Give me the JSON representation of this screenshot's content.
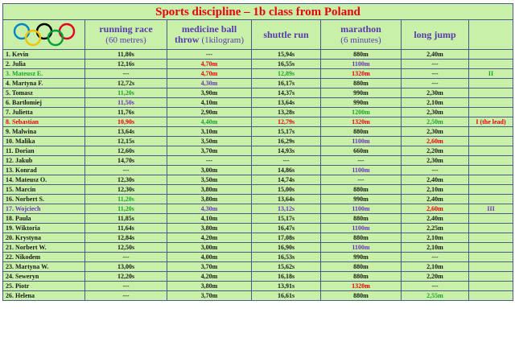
{
  "title": "Sports discipline – 1b class from Poland",
  "logo_icon": "olympic-rings-icon",
  "headers": {
    "running_race": {
      "title": "running race",
      "sub": "(60 metres)"
    },
    "medicine_ball": {
      "title": "medicine ball throw",
      "sub": "(1kilogram)"
    },
    "shuttle_run": {
      "title": "shuttle run",
      "sub": ""
    },
    "marathon": {
      "title": "marathon",
      "sub": "(6 minutes)"
    },
    "long_jump": {
      "title": "long jump",
      "sub": ""
    }
  },
  "colors": {
    "title": "#e8000d",
    "header": "#5a3ab0",
    "background": "#c8f0a8",
    "red": "#e8000d",
    "green": "#19a52a",
    "purple": "#6a32b8",
    "black": "#1a1a1a"
  },
  "rows": [
    {
      "name": "1.  Kevin",
      "name_color": "black",
      "run": "11,80s",
      "run_c": "black",
      "ball": "---",
      "ball_c": "black",
      "shuttle": "15,94s",
      "shuttle_c": "black",
      "marathon": "880m",
      "marathon_c": "black",
      "jump": "2,40m",
      "jump_c": "black",
      "note": "",
      "note_c": "black"
    },
    {
      "name": "2.  Julia",
      "name_color": "black",
      "run": "12,16s",
      "run_c": "black",
      "ball": "4,70m",
      "ball_c": "red",
      "shuttle": "16,55s",
      "shuttle_c": "black",
      "marathon": "1100m",
      "marathon_c": "purple",
      "jump": "---",
      "jump_c": "black",
      "note": "",
      "note_c": "black"
    },
    {
      "name": "3.  Mateusz E.",
      "name_color": "green",
      "run": "---",
      "run_c": "black",
      "ball": "4,70m",
      "ball_c": "red",
      "shuttle": "12,89s",
      "shuttle_c": "green",
      "marathon": "1320m",
      "marathon_c": "red",
      "jump": "---",
      "jump_c": "black",
      "note": "II",
      "note_c": "green"
    },
    {
      "name": "4.  Martyna F.",
      "name_color": "black",
      "run": "12,72s",
      "run_c": "black",
      "ball": "4,30m",
      "ball_c": "purple",
      "shuttle": "16,17s",
      "shuttle_c": "black",
      "marathon": "880m",
      "marathon_c": "black",
      "jump": "---",
      "jump_c": "black",
      "note": "",
      "note_c": "black"
    },
    {
      "name": "5.  Tomasz",
      "name_color": "black",
      "run": "11,20s",
      "run_c": "green",
      "ball": "3,90m",
      "ball_c": "black",
      "shuttle": "14,37s",
      "shuttle_c": "black",
      "marathon": "990m",
      "marathon_c": "black",
      "jump": "2,30m",
      "jump_c": "black",
      "note": "",
      "note_c": "black"
    },
    {
      "name": "6.  Bartłomiej",
      "name_color": "black",
      "run": "11,50s",
      "run_c": "purple",
      "ball": "4,10m",
      "ball_c": "black",
      "shuttle": "13,64s",
      "shuttle_c": "black",
      "marathon": "990m",
      "marathon_c": "black",
      "jump": "2,10m",
      "jump_c": "black",
      "note": "",
      "note_c": "black"
    },
    {
      "name": "7.  Julietta",
      "name_color": "black",
      "run": "11,76s",
      "run_c": "black",
      "ball": "2,90m",
      "ball_c": "black",
      "shuttle": "13,28s",
      "shuttle_c": "black",
      "marathon": "1200m",
      "marathon_c": "green",
      "jump": "2,30m",
      "jump_c": "black",
      "note": "",
      "note_c": "black"
    },
    {
      "name": "8.  Sebastian",
      "name_color": "red",
      "run": "10,90s",
      "run_c": "red",
      "ball": "4,40m",
      "ball_c": "green",
      "shuttle": "12,79s",
      "shuttle_c": "red",
      "marathon": "1320m",
      "marathon_c": "red",
      "jump": "2,50m",
      "jump_c": "green",
      "note": "I (the lead)",
      "note_c": "red"
    },
    {
      "name": "9.  Malwina",
      "name_color": "black",
      "run": "13,64s",
      "run_c": "black",
      "ball": "3,10m",
      "ball_c": "black",
      "shuttle": "15,17s",
      "shuttle_c": "black",
      "marathon": "880m",
      "marathon_c": "black",
      "jump": "2,30m",
      "jump_c": "black",
      "note": "",
      "note_c": "black"
    },
    {
      "name": "10. Malika",
      "name_color": "black",
      "run": "12,15s",
      "run_c": "black",
      "ball": "3,50m",
      "ball_c": "black",
      "shuttle": "16,29s",
      "shuttle_c": "black",
      "marathon": "1100m",
      "marathon_c": "purple",
      "jump": "2,60m",
      "jump_c": "red",
      "note": "",
      "note_c": "black"
    },
    {
      "name": "11. Dorian",
      "name_color": "black",
      "run": "12,60s",
      "run_c": "black",
      "ball": "3,70m",
      "ball_c": "black",
      "shuttle": "14,93s",
      "shuttle_c": "black",
      "marathon": "660m",
      "marathon_c": "black",
      "jump": "2,20m",
      "jump_c": "black",
      "note": "",
      "note_c": "black"
    },
    {
      "name": "12. Jakub",
      "name_color": "black",
      "run": "14,70s",
      "run_c": "black",
      "ball": "---",
      "ball_c": "black",
      "shuttle": "---",
      "shuttle_c": "black",
      "marathon": "---",
      "marathon_c": "black",
      "jump": "2,30m",
      "jump_c": "black",
      "note": "",
      "note_c": "black"
    },
    {
      "name": "13. Konrad",
      "name_color": "black",
      "run": "---",
      "run_c": "black",
      "ball": "3,00m",
      "ball_c": "black",
      "shuttle": "14,86s",
      "shuttle_c": "black",
      "marathon": "1100m",
      "marathon_c": "purple",
      "jump": "---",
      "jump_c": "black",
      "note": "",
      "note_c": "black"
    },
    {
      "name": "14. Mateusz O.",
      "name_color": "black",
      "run": "12,30s",
      "run_c": "black",
      "ball": "3,50m",
      "ball_c": "black",
      "shuttle": "14,74s",
      "shuttle_c": "black",
      "marathon": "---",
      "marathon_c": "black",
      "jump": "2,40m",
      "jump_c": "black",
      "note": "",
      "note_c": "black"
    },
    {
      "name": "15. Marcin",
      "name_color": "black",
      "run": "12,30s",
      "run_c": "black",
      "ball": "3,80m",
      "ball_c": "black",
      "shuttle": "15,00s",
      "shuttle_c": "black",
      "marathon": "880m",
      "marathon_c": "black",
      "jump": "2,10m",
      "jump_c": "black",
      "note": "",
      "note_c": "black"
    },
    {
      "name": "16. Norbert S.",
      "name_color": "black",
      "run": "11,20s",
      "run_c": "green",
      "ball": "3,80m",
      "ball_c": "black",
      "shuttle": "13,64s",
      "shuttle_c": "black",
      "marathon": "990m",
      "marathon_c": "black",
      "jump": "2,40m",
      "jump_c": "black",
      "note": "",
      "note_c": "black"
    },
    {
      "name": "17. Wojciech",
      "name_color": "purple",
      "run": "11,20s",
      "run_c": "green",
      "ball": "4,30m",
      "ball_c": "purple",
      "shuttle": "13,12s",
      "shuttle_c": "purple",
      "marathon": "1100m",
      "marathon_c": "purple",
      "jump": "2,60m",
      "jump_c": "red",
      "note": "III",
      "note_c": "purple"
    },
    {
      "name": "18. Paula",
      "name_color": "black",
      "run": "11,85s",
      "run_c": "black",
      "ball": "4,10m",
      "ball_c": "black",
      "shuttle": "15,17s",
      "shuttle_c": "black",
      "marathon": "880m",
      "marathon_c": "black",
      "jump": "2,40m",
      "jump_c": "black",
      "note": "",
      "note_c": "black"
    },
    {
      "name": "19. Wiktoria",
      "name_color": "black",
      "run": "11,64s",
      "run_c": "black",
      "ball": "3,80m",
      "ball_c": "black",
      "shuttle": "16,47s",
      "shuttle_c": "black",
      "marathon": "1100m",
      "marathon_c": "purple",
      "jump": "2,25m",
      "jump_c": "black",
      "note": "",
      "note_c": "black"
    },
    {
      "name": "20. Krystyna",
      "name_color": "black",
      "run": "12,84s",
      "run_c": "black",
      "ball": "4,20m",
      "ball_c": "black",
      "shuttle": "17,08s",
      "shuttle_c": "black",
      "marathon": "880m",
      "marathon_c": "black",
      "jump": "2,10m",
      "jump_c": "black",
      "note": "",
      "note_c": "black"
    },
    {
      "name": "21. Norbert W.",
      "name_color": "black",
      "run": "12,50s",
      "run_c": "black",
      "ball": "3,00m",
      "ball_c": "black",
      "shuttle": "16,90s",
      "shuttle_c": "black",
      "marathon": "1100m",
      "marathon_c": "purple",
      "jump": "2,10m",
      "jump_c": "black",
      "note": "",
      "note_c": "black"
    },
    {
      "name": "22. Nikodem",
      "name_color": "black",
      "run": "---",
      "run_c": "black",
      "ball": "4,00m",
      "ball_c": "black",
      "shuttle": "16,53s",
      "shuttle_c": "black",
      "marathon": "990m",
      "marathon_c": "black",
      "jump": "---",
      "jump_c": "black",
      "note": "",
      "note_c": "black"
    },
    {
      "name": "23. Martyna W.",
      "name_color": "black",
      "run": "13,00s",
      "run_c": "black",
      "ball": "3,70m",
      "ball_c": "black",
      "shuttle": "15,62s",
      "shuttle_c": "black",
      "marathon": "880m",
      "marathon_c": "black",
      "jump": "2,10m",
      "jump_c": "black",
      "note": "",
      "note_c": "black"
    },
    {
      "name": "24. Seweryn",
      "name_color": "black",
      "run": "12,20s",
      "run_c": "black",
      "ball": "4,20m",
      "ball_c": "black",
      "shuttle": "16,18s",
      "shuttle_c": "black",
      "marathon": "880m",
      "marathon_c": "black",
      "jump": "2,20m",
      "jump_c": "black",
      "note": "",
      "note_c": "black"
    },
    {
      "name": "25. Piotr",
      "name_color": "black",
      "run": "---",
      "run_c": "black",
      "ball": "3,80m",
      "ball_c": "black",
      "shuttle": "13,91s",
      "shuttle_c": "black",
      "marathon": "1320m",
      "marathon_c": "red",
      "jump": "---",
      "jump_c": "black",
      "note": "",
      "note_c": "black"
    },
    {
      "name": "26. Helena",
      "name_color": "black",
      "run": "---",
      "run_c": "black",
      "ball": "3,70m",
      "ball_c": "black",
      "shuttle": "16,61s",
      "shuttle_c": "black",
      "marathon": "880m",
      "marathon_c": "black",
      "jump": "2,55m",
      "jump_c": "green",
      "note": "",
      "note_c": "black"
    }
  ]
}
